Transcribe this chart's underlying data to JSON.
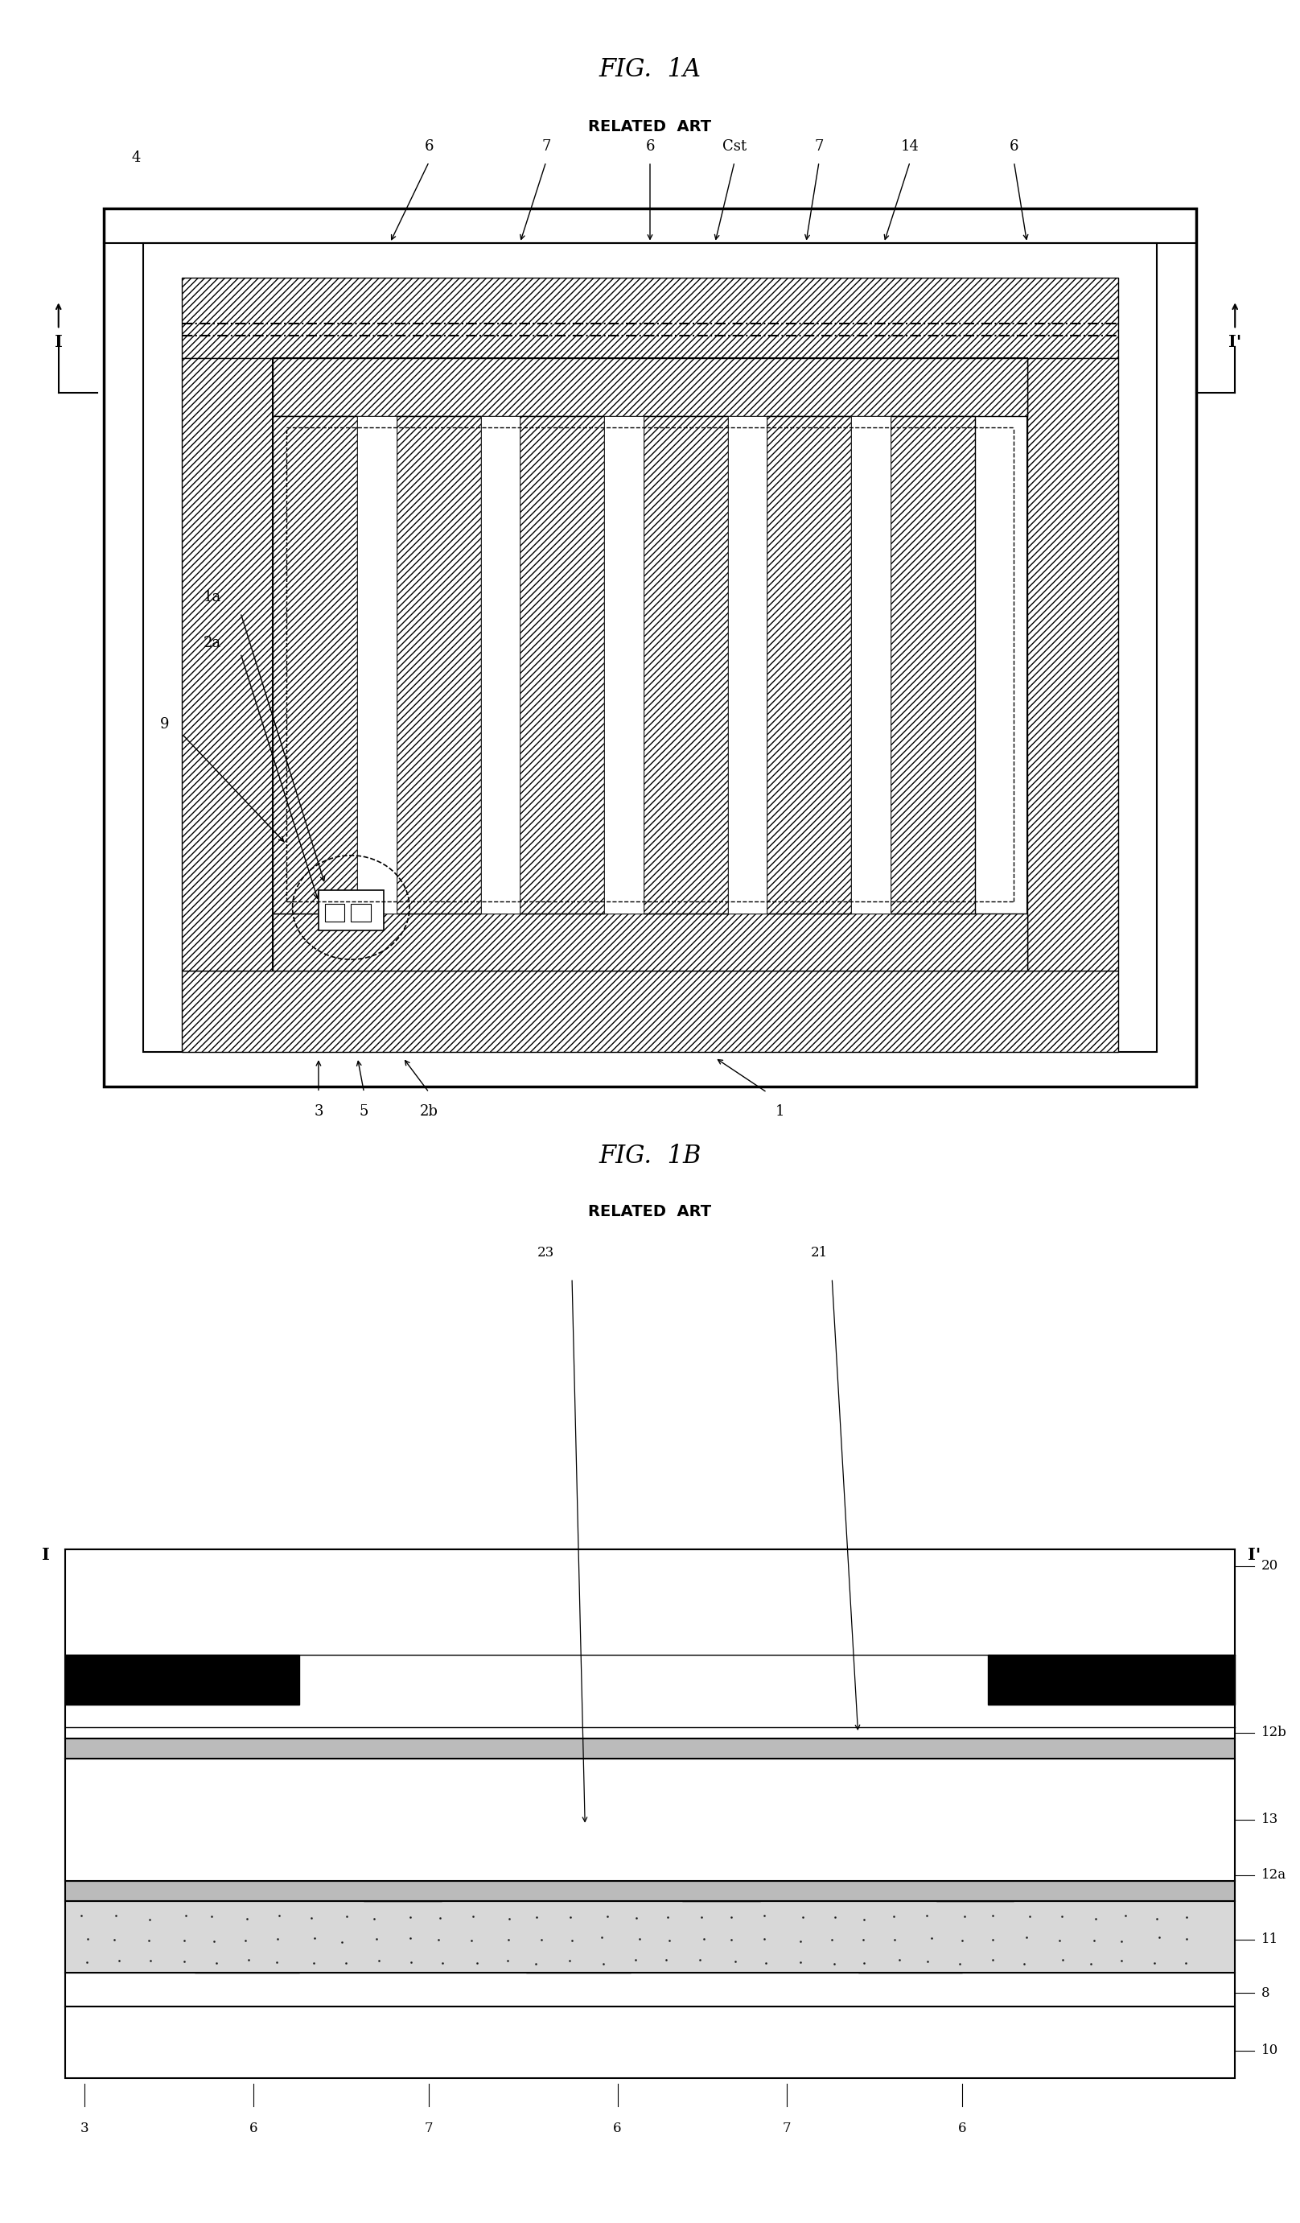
{
  "fig_width": 16.16,
  "fig_height": 27.62,
  "bg_color": "#ffffff",
  "fig1a_title": "FIG.  1A",
  "fig1a_subtitle": "RELATED  ART",
  "fig1b_title": "FIG.  1B",
  "fig1b_subtitle": "RELATED  ART",
  "title_fontsize": 22,
  "subtitle_fontsize": 14,
  "label_fontsize": 13
}
